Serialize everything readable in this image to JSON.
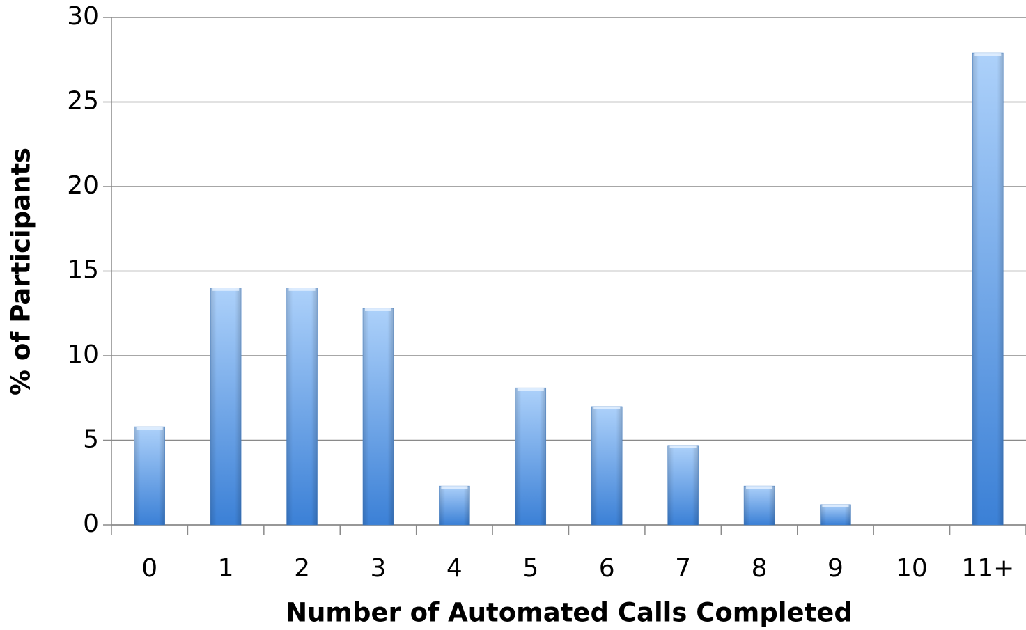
{
  "chart_data": {
    "type": "bar",
    "xlabel": "Number of Automated Calls Completed",
    "ylabel": "% of Participants",
    "categories": [
      "0",
      "1",
      "2",
      "3",
      "4",
      "5",
      "6",
      "7",
      "8",
      "9",
      "10",
      "11+"
    ],
    "values": [
      5.8,
      14.0,
      14.0,
      12.8,
      2.3,
      8.1,
      7.0,
      4.7,
      2.3,
      1.2,
      0,
      27.9
    ],
    "color": "#5b9be6",
    "ylim": [
      0,
      30
    ],
    "yticks": [
      0,
      5,
      10,
      15,
      20,
      25,
      30
    ],
    "grid": true
  }
}
